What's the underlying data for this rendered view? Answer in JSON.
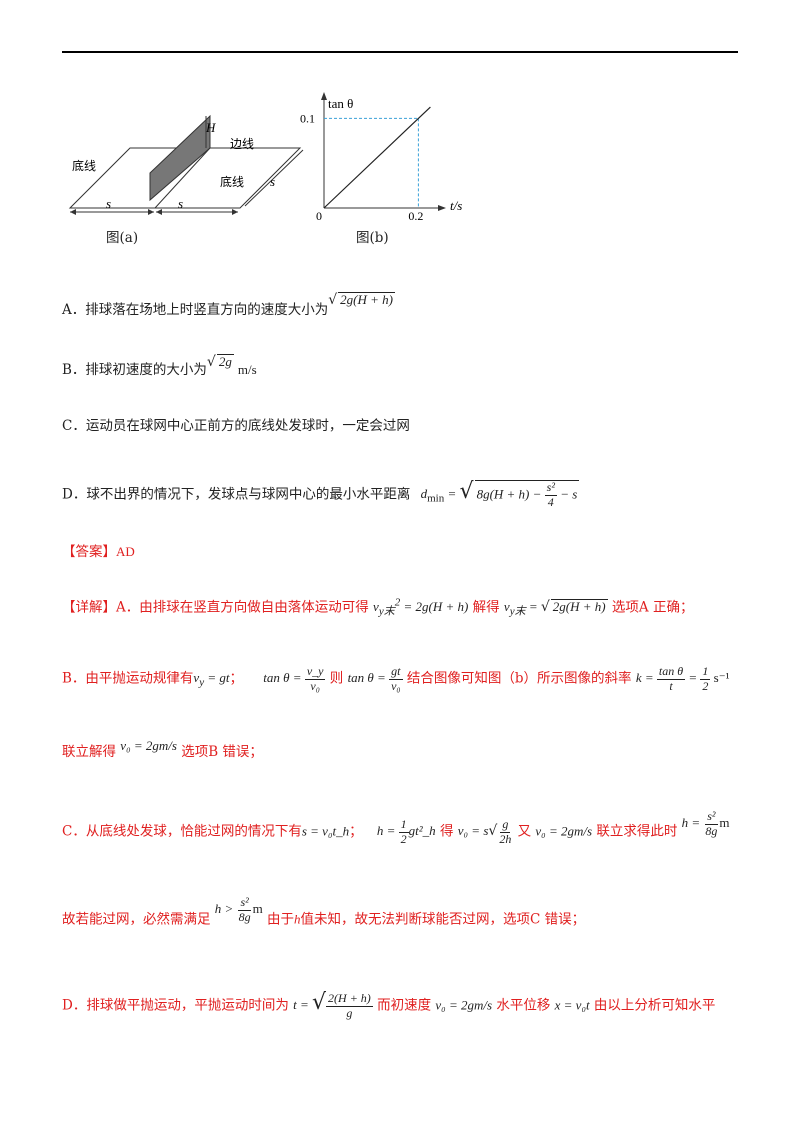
{
  "figure_a": {
    "caption": "图(a)",
    "label_baseline_left": "底线",
    "label_baseline_right": "底线",
    "label_sideline": "边线",
    "label_H": "H",
    "label_s_left": "s",
    "label_s_right": "s",
    "label_s_side": "s"
  },
  "figure_b": {
    "caption": "图(b)",
    "y_axis_label": "tan θ",
    "x_axis_label": "t/s",
    "origin": "0",
    "y_tick": "0.1",
    "x_tick": "0.2"
  },
  "chart_data": {
    "type": "line",
    "x": [
      0,
      0.2
    ],
    "y": [
      0,
      0.1
    ],
    "xlabel": "t/s",
    "ylabel": "tan θ"
  },
  "options": {
    "A": {
      "text": "A．排球落在场地上时竖直方向的速度大小为",
      "math": "2g(H + h)"
    },
    "B": {
      "text": "B．排球初速度的大小为",
      "math": "2g",
      "unit": "m/s"
    },
    "C": {
      "text": "C．运动员在球网中心正前方的底线处发球时，一定会过网"
    },
    "D": {
      "text": "D．球不出界的情况下，发球点与球网中心的最小水平距离",
      "math_lhs": "d",
      "math_sub": "min",
      "math_body": "8g(H + h) −",
      "frac_num": "s²",
      "frac_den": "4",
      "tail": "− s"
    }
  },
  "answer": {
    "label": "【答案】",
    "value": "AD"
  },
  "detail": {
    "label": "【详解】",
    "a_text1": "A．由排球在竖直方向做自由落体运动可得",
    "a_eq1": "= 2g(H + h)",
    "a_text2": "解得",
    "a_eq2": "2g(H + h)",
    "a_text3": "选项A 正确；",
    "b_text1": "B．由平抛运动规律有",
    "b_eq1": "v",
    "b_eq1_sub": "y",
    "b_eq1_rhs": "= gt",
    "b_sep": "；",
    "b_tan": "tan θ =",
    "b_frac1_num": "v_y",
    "b_frac1_den": "v₀",
    "b_then": "则",
    "b_frac2_num": "gt",
    "b_frac2_den": "v₀",
    "b_text2": "结合图像可知图（b）所示图像的斜率",
    "b_k": "k =",
    "b_kfrac_num": "tan θ",
    "b_kfrac_den": "t",
    "b_eq": "=",
    "b_half_num": "1",
    "b_half_den": "2",
    "b_unit": "s⁻¹",
    "b2_text1": "联立解得",
    "b2_eq": "v₀ = 2gm/s",
    "b2_text2": "选项B 错误；",
    "c_text1": "C．从底线处发球，恰能过网的情况下有",
    "c_eq1": "s = v₀t_h",
    "c_sep": "；",
    "c_h": "h =",
    "c_half_num": "1",
    "c_half_den": "2",
    "c_gt": "gt²_h",
    "c_de": "得",
    "c_v0": "v₀ = s",
    "c_sqrt_num": "g",
    "c_sqrt_den": "2h",
    "c_you": "又",
    "c_v0b": "v₀ = 2gm/s",
    "c_text2": "联立求得此时",
    "c_h2": "h =",
    "c_h2_num": "s²",
    "c_h2_den": "8g",
    "c_m": "m",
    "c2_text1": "故若能过网，必然需满足",
    "c2_ineq": "h >",
    "c2_num": "s²",
    "c2_den": "8g",
    "c2_m": "m",
    "c2_text2": "由于",
    "c2_h": "h",
    "c2_text3": "值未知，故无法判断球能否过网，选项C 错误；",
    "d_text1": "D．排球做平抛运动，平抛运动时间为",
    "d_t": "t =",
    "d_num": "2(H + h)",
    "d_den": "g",
    "d_text2": "而初速度",
    "d_v0": "v₀ = 2gm/s",
    "d_text3": "水平位移",
    "d_x": "x = v₀t",
    "d_text4": "由以上分析可知水平"
  }
}
